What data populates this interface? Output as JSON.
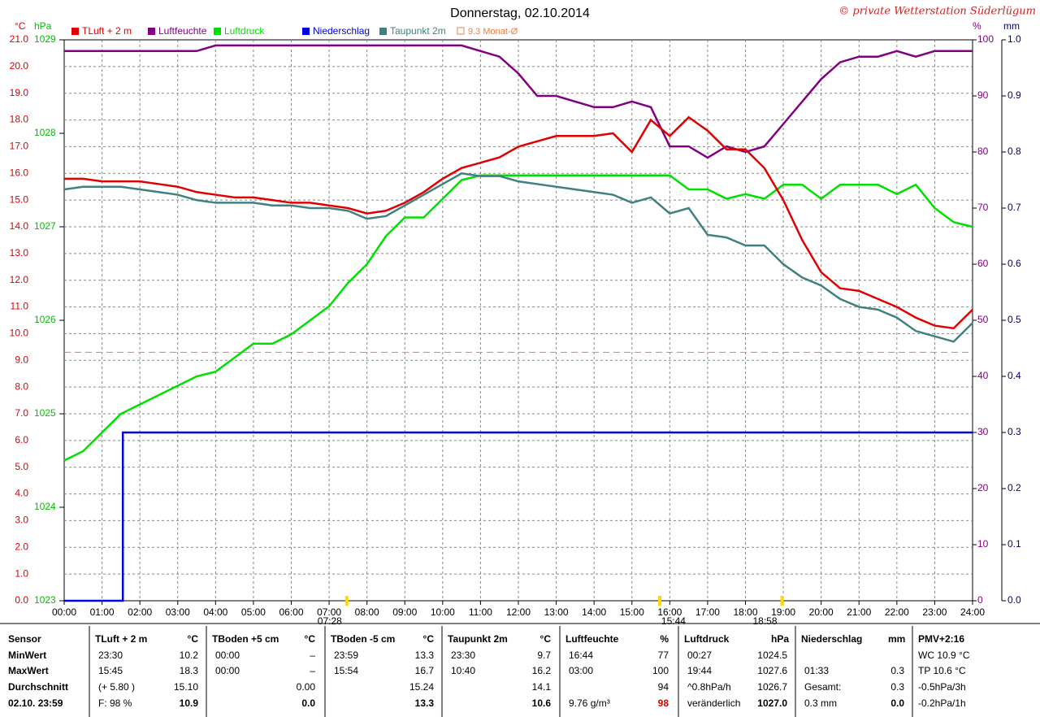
{
  "chart_data": {
    "type": "line",
    "title": "Donnerstag, 02.10.2014",
    "copyright": "© private Wetterstation Süderlügum",
    "ylabel": "°C",
    "y2label": "hPa",
    "y3label": "%",
    "y4label": "mm",
    "ylim": [
      0,
      21
    ],
    "yticks": [
      {
        "value": 0,
        "label": "0.0"
      },
      {
        "value": 1,
        "label": "1.0"
      },
      {
        "value": 2,
        "label": "2.0"
      },
      {
        "value": 3,
        "label": "3.0"
      },
      {
        "value": 4,
        "label": "4.0"
      },
      {
        "value": 5,
        "label": "5.0"
      },
      {
        "value": 6,
        "label": "6.0"
      },
      {
        "value": 7,
        "label": "7.0"
      },
      {
        "value": 8,
        "label": "8.0"
      },
      {
        "value": 9,
        "label": "9.0"
      },
      {
        "value": 10,
        "label": "10.0"
      },
      {
        "value": 11,
        "label": "11.0"
      },
      {
        "value": 12,
        "label": "12.0"
      },
      {
        "value": 13,
        "label": "13.0"
      },
      {
        "value": 14,
        "label": "14.0"
      },
      {
        "value": 15,
        "label": "15.0"
      },
      {
        "value": 16,
        "label": "16.0"
      },
      {
        "value": 17,
        "label": "17.0"
      },
      {
        "value": 18,
        "label": "18.0"
      },
      {
        "value": 19,
        "label": "19.0"
      },
      {
        "value": 20,
        "label": "20.0"
      },
      {
        "value": 21,
        "label": "21.0"
      }
    ],
    "y2lim": [
      1023,
      1029
    ],
    "y2ticks": [
      1023,
      1024,
      1025,
      1026,
      1027,
      1028,
      1029
    ],
    "y3lim": [
      0,
      100
    ],
    "y3ticks": [
      0,
      10,
      20,
      30,
      40,
      50,
      60,
      70,
      80,
      90,
      100
    ],
    "y4lim": [
      0,
      1
    ],
    "y4ticks": [
      {
        "value": 0,
        "label": "0.0"
      },
      0.1,
      0.2,
      0.3,
      0.4,
      0.5,
      0.6,
      0.7,
      0.8,
      0.9,
      {
        "value": 1,
        "label": "1.0"
      }
    ],
    "xlim": [
      0,
      24
    ],
    "xticks": [
      {
        "value": 0,
        "label": "00:00"
      },
      {
        "value": 1,
        "label": "01:00"
      },
      {
        "value": 2,
        "label": "02:00"
      },
      {
        "value": 3,
        "label": "03:00"
      },
      {
        "value": 4,
        "label": "04:00"
      },
      {
        "value": 5,
        "label": "05:00"
      },
      {
        "value": 6,
        "label": "06:00"
      },
      {
        "value": 7,
        "label": "07:00"
      },
      {
        "value": 8,
        "label": "08:00"
      },
      {
        "value": 9,
        "label": "09:00"
      },
      {
        "value": 10,
        "label": "10:00"
      },
      {
        "value": 11,
        "label": "11:00"
      },
      {
        "value": 12,
        "label": "12:00"
      },
      {
        "value": 13,
        "label": "13:00"
      },
      {
        "value": 14,
        "label": "14:00"
      },
      {
        "value": 15,
        "label": "15:00"
      },
      {
        "value": 16,
        "label": "16:00"
      },
      {
        "value": 17,
        "label": "17:00"
      },
      {
        "value": 18,
        "label": "18:00"
      },
      {
        "value": 19,
        "label": "19:00"
      },
      {
        "value": 20,
        "label": "20:00"
      },
      {
        "value": 21,
        "label": "21:00"
      },
      {
        "value": 22,
        "label": "22:00"
      },
      {
        "value": 23,
        "label": "23:00"
      },
      {
        "value": 24,
        "label": "24:00"
      }
    ],
    "grid": true,
    "x": [
      0,
      0.5,
      1,
      1.5,
      2,
      2.5,
      3,
      3.5,
      4,
      4.5,
      5,
      5.5,
      6,
      6.5,
      7,
      7.5,
      8,
      8.5,
      9,
      9.5,
      10,
      10.5,
      11,
      11.5,
      12,
      12.5,
      13,
      13.5,
      14,
      14.5,
      15,
      15.5,
      16,
      16.5,
      17,
      17.5,
      18,
      18.5,
      19,
      19.5,
      20,
      20.5,
      21,
      21.5,
      22,
      22.5,
      23,
      23.5,
      24
    ],
    "series": [
      {
        "name": "TLuft + 2 m",
        "color": "#e00000",
        "axis": "y",
        "values": [
          15.8,
          15.8,
          15.7,
          15.7,
          15.7,
          15.6,
          15.5,
          15.3,
          15.2,
          15.1,
          15.1,
          15.0,
          14.9,
          14.9,
          14.8,
          14.7,
          14.5,
          14.6,
          14.9,
          15.3,
          15.8,
          16.2,
          16.4,
          16.6,
          17.0,
          17.2,
          17.4,
          17.4,
          17.4,
          17.5,
          16.8,
          18.0,
          17.4,
          18.1,
          17.6,
          16.9,
          16.9,
          16.2,
          15.0,
          13.5,
          12.3,
          11.7,
          11.6,
          11.3,
          11.0,
          10.6,
          10.3,
          10.2,
          10.9
        ]
      },
      {
        "name": "Luftfeuchte",
        "color": "#800080",
        "axis": "y3",
        "values": [
          98,
          98,
          98,
          98,
          98,
          98,
          98,
          98,
          99,
          99,
          99,
          99,
          99,
          99,
          99,
          99,
          99,
          99,
          99,
          99,
          99,
          99,
          98,
          97,
          94,
          90,
          90,
          89,
          88,
          88,
          89,
          88,
          81,
          81,
          79,
          81,
          80,
          81,
          85,
          89,
          93,
          96,
          97,
          97,
          98,
          97,
          98,
          98,
          98
        ]
      },
      {
        "name": "Luftdruck",
        "color": "#00e000",
        "axis": "y2",
        "values": [
          1024.5,
          1024.6,
          1024.8,
          1025.0,
          1025.1,
          1025.2,
          1025.3,
          1025.4,
          1025.45,
          1025.6,
          1025.75,
          1025.75,
          1025.85,
          1026.0,
          1026.15,
          1026.4,
          1026.6,
          1026.9,
          1027.1,
          1027.1,
          1027.3,
          1027.5,
          1027.55,
          1027.55,
          1027.55,
          1027.55,
          1027.55,
          1027.55,
          1027.55,
          1027.55,
          1027.55,
          1027.55,
          1027.55,
          1027.4,
          1027.4,
          1027.3,
          1027.35,
          1027.3,
          1027.45,
          1027.45,
          1027.3,
          1027.45,
          1027.45,
          1027.45,
          1027.35,
          1027.45,
          1027.2,
          1027.05,
          1027.0
        ]
      },
      {
        "name": "Niederschlag",
        "color": "#0000e0",
        "axis": "y4",
        "step": true,
        "x": [
          0,
          1.55,
          24
        ],
        "values": [
          0,
          0.3,
          0.3
        ]
      },
      {
        "name": "Taupunkt 2m",
        "color": "#408080",
        "axis": "y",
        "values": [
          15.4,
          15.5,
          15.5,
          15.5,
          15.4,
          15.3,
          15.2,
          15.0,
          14.9,
          14.9,
          14.9,
          14.8,
          14.8,
          14.7,
          14.7,
          14.6,
          14.3,
          14.4,
          14.8,
          15.2,
          15.6,
          16.0,
          15.9,
          15.9,
          15.7,
          15.6,
          15.5,
          15.4,
          15.3,
          15.2,
          14.9,
          15.1,
          14.5,
          14.7,
          13.7,
          13.6,
          13.3,
          13.3,
          12.6,
          12.1,
          11.8,
          11.3,
          11.0,
          10.9,
          10.6,
          10.1,
          9.9,
          9.7,
          10.4
        ]
      }
    ],
    "reference": {
      "value": 9.3,
      "label": "9.3 Monat-Ø",
      "color": "#f08040"
    },
    "annotations": [
      {
        "x": 7.4667,
        "label": "07:28"
      },
      {
        "x": 15.7333,
        "label": "15:44"
      },
      {
        "x": 18.9667,
        "label": "18:58"
      }
    ]
  },
  "table": {
    "row_labels": [
      "Sensor",
      "MinWert",
      "MaxWert",
      "Durchschnitt",
      "02.10. 23:59"
    ],
    "groups": [
      {
        "name": "TLuft + 2 m",
        "unit": "°C",
        "rows": [
          {
            "time": "23:30",
            "value": "10.2"
          },
          {
            "time": "15:45",
            "value": "18.3"
          },
          {
            "time": "(+ 5.80 )",
            "value": "15.10"
          },
          {
            "time": "F: 98 %",
            "value": "10.9"
          }
        ]
      },
      {
        "name": "TBoden +5 cm",
        "unit": "°C",
        "rows": [
          {
            "time": "00:00",
            "value": "–"
          },
          {
            "time": "00:00",
            "value": "–"
          },
          {
            "value": "0.00"
          },
          {
            "value": "0.0"
          }
        ]
      },
      {
        "name": "TBoden -5 cm",
        "unit": "°C",
        "rows": [
          {
            "time": "23:59",
            "value": "13.3"
          },
          {
            "time": "15:54",
            "value": "16.7"
          },
          {
            "value": "15.24"
          },
          {
            "value": "13.3"
          }
        ]
      },
      {
        "name": "Taupunkt 2m",
        "unit": "°C",
        "rows": [
          {
            "time": "23:30",
            "value": "9.7"
          },
          {
            "time": "10:40",
            "value": "16.2"
          },
          {
            "value": "14.1"
          },
          {
            "value": "10.6"
          }
        ]
      },
      {
        "name": "Luftfeuchte",
        "unit": "%",
        "rows": [
          {
            "time": "16:44",
            "value": "77"
          },
          {
            "time": "03:00",
            "value": "100"
          },
          {
            "value": "94"
          },
          {
            "time": "9.76 g/m³",
            "value": "98"
          }
        ]
      },
      {
        "name": "Luftdruck",
        "unit": "hPa",
        "rows": [
          {
            "time": "00:27",
            "value": "1024.5"
          },
          {
            "time": "19:44",
            "value": "1027.6"
          },
          {
            "time": "^0.8hPa/h",
            "value": "1026.7"
          },
          {
            "time": "veränderlich",
            "value": "1027.0"
          }
        ]
      },
      {
        "name": "Niederschlag",
        "unit": "mm",
        "rows": [
          {},
          {
            "time": "01:33",
            "value": "0.3"
          },
          {
            "time": "Gesamt:",
            "value": "0.3"
          },
          {
            "time": "0.3 mm",
            "value": "0.0"
          }
        ]
      },
      {
        "name": "PMV+2:16",
        "rows": [
          {
            "time": "WC 10.9 °C"
          },
          {
            "time": "TP 10.6 °C"
          },
          {
            "time": "-0.5hPa/3h"
          },
          {
            "time": "-0.2hPa/1h"
          }
        ]
      }
    ]
  }
}
